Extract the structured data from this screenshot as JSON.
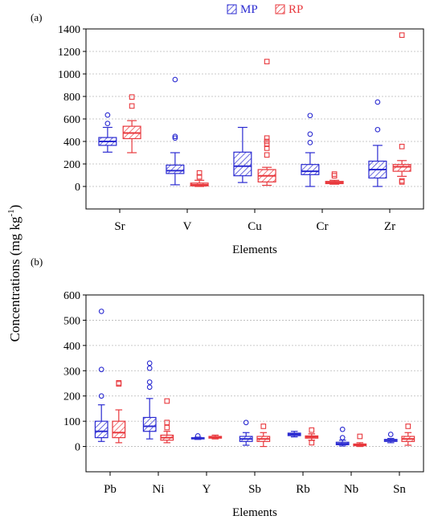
{
  "figure": {
    "shared_ylabel_main": "Concentrations (mg kg",
    "shared_ylabel_sup": "-1",
    "shared_ylabel_close": ")",
    "legend": [
      {
        "name": "MP",
        "color": "#2b2bd1"
      },
      {
        "name": "RP",
        "color": "#e8383d"
      }
    ]
  },
  "chart_data": [
    {
      "type": "box",
      "panel_label": "(a)",
      "xlabel": "Elements",
      "ylim": [
        -200,
        1400
      ],
      "yticks": [
        0,
        200,
        400,
        600,
        800,
        1000,
        1200,
        1400
      ],
      "grid": true,
      "categories": [
        "Sr",
        "V",
        "Cu",
        "Cr",
        "Zr"
      ],
      "series": [
        {
          "name": "MP",
          "boxes": [
            {
              "min": 305,
              "q1": 365,
              "median": 400,
              "q3": 435,
              "max": 525,
              "outliers": [
                560,
                635
              ]
            },
            {
              "min": 15,
              "q1": 115,
              "median": 140,
              "q3": 190,
              "max": 300,
              "outliers": [
                430,
                445,
                950
              ]
            },
            {
              "min": 35,
              "q1": 95,
              "median": 180,
              "q3": 305,
              "max": 525,
              "outliers": []
            },
            {
              "min": 0,
              "q1": 105,
              "median": 135,
              "q3": 195,
              "max": 300,
              "outliers": [
                390,
                465,
                630
              ]
            },
            {
              "min": 0,
              "q1": 75,
              "median": 150,
              "q3": 225,
              "max": 365,
              "outliers": [
                505,
                750
              ]
            }
          ]
        },
        {
          "name": "RP",
          "boxes": [
            {
              "min": 300,
              "q1": 425,
              "median": 475,
              "q3": 535,
              "max": 585,
              "outliers": [
                715,
                795
              ]
            },
            {
              "min": 0,
              "q1": 5,
              "median": 15,
              "q3": 30,
              "max": 55,
              "outliers": [
                85,
                120
              ]
            },
            {
              "min": 10,
              "q1": 40,
              "median": 95,
              "q3": 150,
              "max": 170,
              "outliers": [
                280,
                340,
                375,
                400,
                430,
                1110
              ]
            },
            {
              "min": 20,
              "q1": 25,
              "median": 35,
              "q3": 45,
              "max": 55,
              "outliers": [
                95,
                110
              ]
            },
            {
              "min": 90,
              "q1": 135,
              "median": 175,
              "q3": 195,
              "max": 230,
              "outliers": [
                40,
                50,
                355,
                1345
              ]
            }
          ]
        }
      ]
    },
    {
      "type": "box",
      "panel_label": "(b)",
      "xlabel": "Elements",
      "ylim": [
        -100,
        600
      ],
      "yticks": [
        0,
        100,
        200,
        300,
        400,
        500,
        600
      ],
      "grid": true,
      "categories": [
        "Pb",
        "Ni",
        "Y",
        "Sb",
        "Rb",
        "Nb",
        "Sn"
      ],
      "series": [
        {
          "name": "MP",
          "boxes": [
            {
              "min": 20,
              "q1": 35,
              "median": 60,
              "q3": 100,
              "max": 165,
              "outliers": [
                200,
                305,
                535
              ]
            },
            {
              "min": 30,
              "q1": 60,
              "median": 80,
              "q3": 115,
              "max": 190,
              "outliers": [
                235,
                255,
                310,
                330
              ]
            },
            {
              "min": 28,
              "q1": 30,
              "median": 32,
              "q3": 35,
              "max": 37,
              "outliers": [
                42
              ]
            },
            {
              "min": 5,
              "q1": 20,
              "median": 30,
              "q3": 40,
              "max": 55,
              "outliers": [
                95
              ]
            },
            {
              "min": 38,
              "q1": 43,
              "median": 48,
              "q3": 53,
              "max": 60,
              "outliers": []
            },
            {
              "min": 2,
              "q1": 7,
              "median": 11,
              "q3": 17,
              "max": 25,
              "outliers": [
                35,
                68
              ]
            },
            {
              "min": 15,
              "q1": 20,
              "median": 25,
              "q3": 28,
              "max": 32,
              "outliers": [
                48
              ]
            }
          ]
        },
        {
          "name": "RP",
          "boxes": [
            {
              "min": 15,
              "q1": 35,
              "median": 55,
              "q3": 100,
              "max": 145,
              "outliers": [
                248,
                252
              ]
            },
            {
              "min": 15,
              "q1": 25,
              "median": 35,
              "q3": 45,
              "max": 60,
              "outliers": [
                75,
                95,
                180
              ]
            },
            {
              "min": 30,
              "q1": 33,
              "median": 36,
              "q3": 40,
              "max": 45,
              "outliers": []
            },
            {
              "min": 0,
              "q1": 20,
              "median": 30,
              "q3": 40,
              "max": 55,
              "outliers": [
                80
              ]
            },
            {
              "min": 25,
              "q1": 33,
              "median": 38,
              "q3": 42,
              "max": 50,
              "outliers": [
                15,
                65
              ]
            },
            {
              "min": 0,
              "q1": 3,
              "median": 6,
              "q3": 10,
              "max": 15,
              "outliers": [
                40
              ]
            },
            {
              "min": 5,
              "q1": 20,
              "median": 30,
              "q3": 40,
              "max": 55,
              "outliers": [
                80
              ]
            }
          ]
        }
      ]
    }
  ]
}
